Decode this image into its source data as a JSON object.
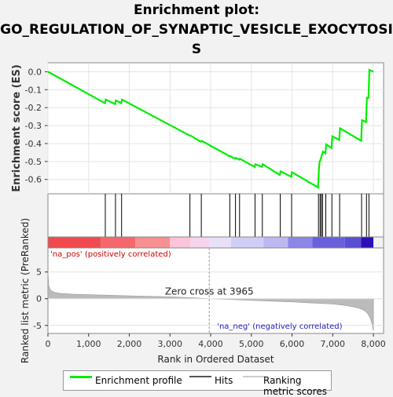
{
  "title_lines": [
    "Enrichment plot:",
    "GO_REGULATION_OF_SYNAPTIC_VESICLE_EXOCYTOSI",
    "S"
  ],
  "colors": {
    "enrichment": "#00ee00",
    "hits": "#000000",
    "metric": "#bbbbbb",
    "pos_text": "#d00000",
    "neg_text": "#2020c0"
  },
  "chart_data": {
    "type": "line",
    "x_range": [
      0,
      8250
    ],
    "es_plot": {
      "ylabel": "Enrichment score (ES)",
      "ylim": [
        -0.68,
        0.05
      ],
      "y_ticks": [
        "0.0",
        "-0.1",
        "-0.2",
        "-0.3",
        "-0.4",
        "-0.5",
        "-0.6"
      ],
      "y_tick_values": [
        0.0,
        -0.1,
        -0.2,
        -0.3,
        -0.4,
        -0.5,
        -0.6
      ],
      "series": [
        {
          "name": "Enrichment profile",
          "x": [
            0,
            1400,
            1420,
            1650,
            1670,
            1800,
            1820,
            3480,
            3500,
            3760,
            3780,
            4460,
            4480,
            4600,
            4620,
            4700,
            4720,
            5080,
            5100,
            5260,
            5280,
            5700,
            5720,
            5980,
            6000,
            6640,
            6660,
            6680,
            6700,
            6740,
            6760,
            6820,
            6840,
            6970,
            6990,
            7160,
            7180,
            7700,
            7720,
            7820,
            7840,
            7880,
            7900,
            8000
          ],
          "y": [
            0.0,
            -0.175,
            -0.155,
            -0.18,
            -0.16,
            -0.175,
            -0.155,
            -0.355,
            -0.355,
            -0.39,
            -0.385,
            -0.47,
            -0.47,
            -0.485,
            -0.48,
            -0.49,
            -0.485,
            -0.53,
            -0.515,
            -0.53,
            -0.515,
            -0.575,
            -0.555,
            -0.585,
            -0.56,
            -0.645,
            -0.545,
            -0.5,
            -0.49,
            -0.46,
            -0.445,
            -0.455,
            -0.405,
            -0.425,
            -0.36,
            -0.38,
            -0.315,
            -0.385,
            -0.27,
            -0.28,
            -0.145,
            -0.145,
            0.01,
            0.0
          ]
        }
      ]
    },
    "hits_x": [
      1410,
      1660,
      1810,
      3490,
      3770,
      4470,
      4610,
      4710,
      5090,
      5270,
      5710,
      5990,
      6650,
      6690,
      6720,
      6750,
      6830,
      6980,
      7170,
      7710,
      7830,
      7890
    ],
    "heatmap_band": [
      {
        "x0": 0,
        "x1": 1300,
        "color": "#f04a4f"
      },
      {
        "x0": 1300,
        "x1": 2150,
        "color": "#f4686c"
      },
      {
        "x0": 2150,
        "x1": 3000,
        "color": "#f79090"
      },
      {
        "x0": 3000,
        "x1": 3500,
        "color": "#fbc4d8"
      },
      {
        "x0": 3500,
        "x1": 3965,
        "color": "#f7d4ee"
      },
      {
        "x0": 3965,
        "x1": 4500,
        "color": "#e8e0f8"
      },
      {
        "x0": 4500,
        "x1": 5300,
        "color": "#d0cef6"
      },
      {
        "x0": 5300,
        "x1": 5900,
        "color": "#bcb8f2"
      },
      {
        "x0": 5900,
        "x1": 6500,
        "color": "#8c86e8"
      },
      {
        "x0": 6500,
        "x1": 7300,
        "color": "#6a60dc"
      },
      {
        "x0": 7300,
        "x1": 7700,
        "color": "#5a4ed2"
      },
      {
        "x0": 7700,
        "x1": 8000,
        "color": "#2a10b8"
      }
    ],
    "metric_plot": {
      "ylabel": "Ranked list metric (PreRanked)",
      "ylim": [
        -6.5,
        9.5
      ],
      "y_ticks": [
        "5",
        "0",
        "-5"
      ],
      "y_tick_values": [
        5,
        0,
        -5
      ],
      "x": [
        0,
        20,
        60,
        150,
        300,
        600,
        1000,
        1500,
        2000,
        2500,
        3000,
        3500,
        3965,
        4500,
        5000,
        5500,
        6000,
        6500,
        7000,
        7300,
        7500,
        7650,
        7750,
        7830,
        7880,
        7920,
        7950,
        7980,
        8000
      ],
      "y": [
        5.0,
        2.5,
        1.6,
        1.2,
        1.0,
        0.85,
        0.75,
        0.65,
        0.55,
        0.45,
        0.35,
        0.2,
        0.0,
        -0.15,
        -0.3,
        -0.45,
        -0.6,
        -0.8,
        -1.0,
        -1.25,
        -1.5,
        -1.8,
        -2.1,
        -2.5,
        -3.0,
        -3.6,
        -4.3,
        -5.2,
        -6.0
      ]
    },
    "x_ticks": [
      "0",
      "1,000",
      "2,000",
      "3,000",
      "4,000",
      "5,000",
      "6,000",
      "7,000",
      "8,000"
    ],
    "x_tick_values": [
      0,
      1000,
      2000,
      3000,
      4000,
      5000,
      6000,
      7000,
      8000
    ],
    "xlabel": "Rank in Ordered Dataset",
    "zero_cross": 3965,
    "zero_cross_label": "Zero cross at 3965",
    "pos_label": "'na_pos' (positively correlated)",
    "neg_label": "'na_neg' (negatively correlated)"
  },
  "legend": {
    "items": [
      "Enrichment profile",
      "Hits",
      "Ranking metric scores"
    ]
  }
}
